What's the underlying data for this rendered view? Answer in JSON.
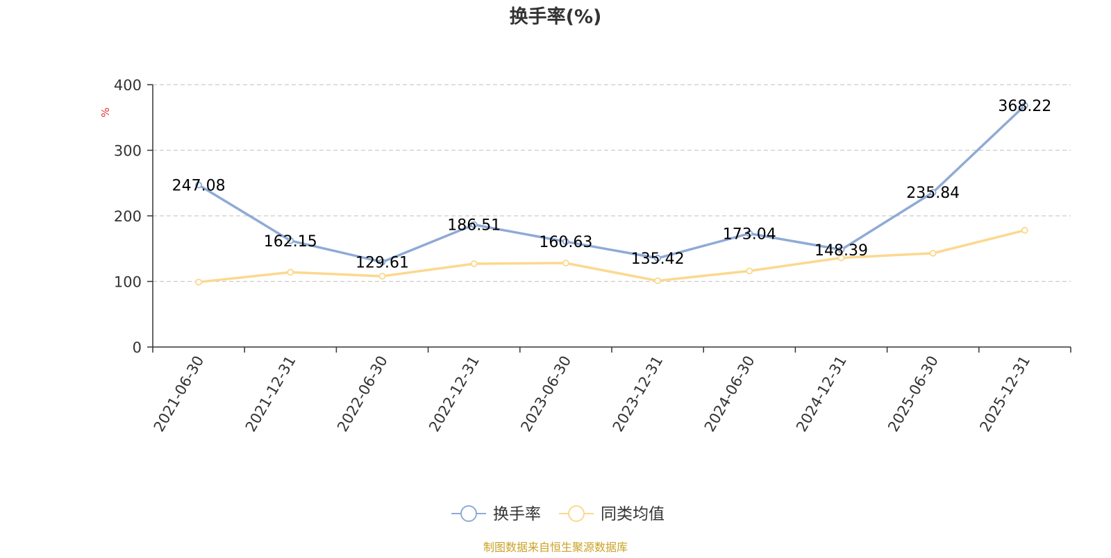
{
  "chart_data": {
    "type": "line",
    "title": "换手率(%)",
    "ylabel": "%",
    "xlabel": "",
    "categories": [
      "2021-06-30",
      "2021-12-31",
      "2022-06-30",
      "2022-12-31",
      "2023-06-30",
      "2023-12-31",
      "2024-06-30",
      "2024-12-31",
      "2025-06-30",
      "2025-12-31"
    ],
    "ylim": [
      0,
      400
    ],
    "yticks": [
      0,
      100,
      200,
      300,
      400
    ],
    "grid": true,
    "legend_position": "bottom",
    "series": [
      {
        "name": "换手率",
        "color": "#8eaad6",
        "values": [
          247.08,
          162.15,
          129.61,
          186.51,
          160.63,
          135.42,
          173.04,
          148.39,
          235.84,
          368.22
        ],
        "data_labels": [
          "247.08",
          "162.15",
          "129.61",
          "186.51",
          "160.63",
          "135.42",
          "173.04",
          "148.39",
          "235.84",
          "368.22"
        ]
      },
      {
        "name": "同类均值",
        "color": "#fcd88f",
        "values": [
          99,
          114,
          108,
          127,
          128,
          101,
          116,
          136,
          143,
          178
        ]
      }
    ]
  },
  "source_note": "制图数据来自恒生聚源数据库",
  "colors": {
    "axis": "#333333",
    "grid": "#cccccc",
    "ylabel": "#e03030",
    "source": "#c9a227",
    "title": "#333333"
  }
}
